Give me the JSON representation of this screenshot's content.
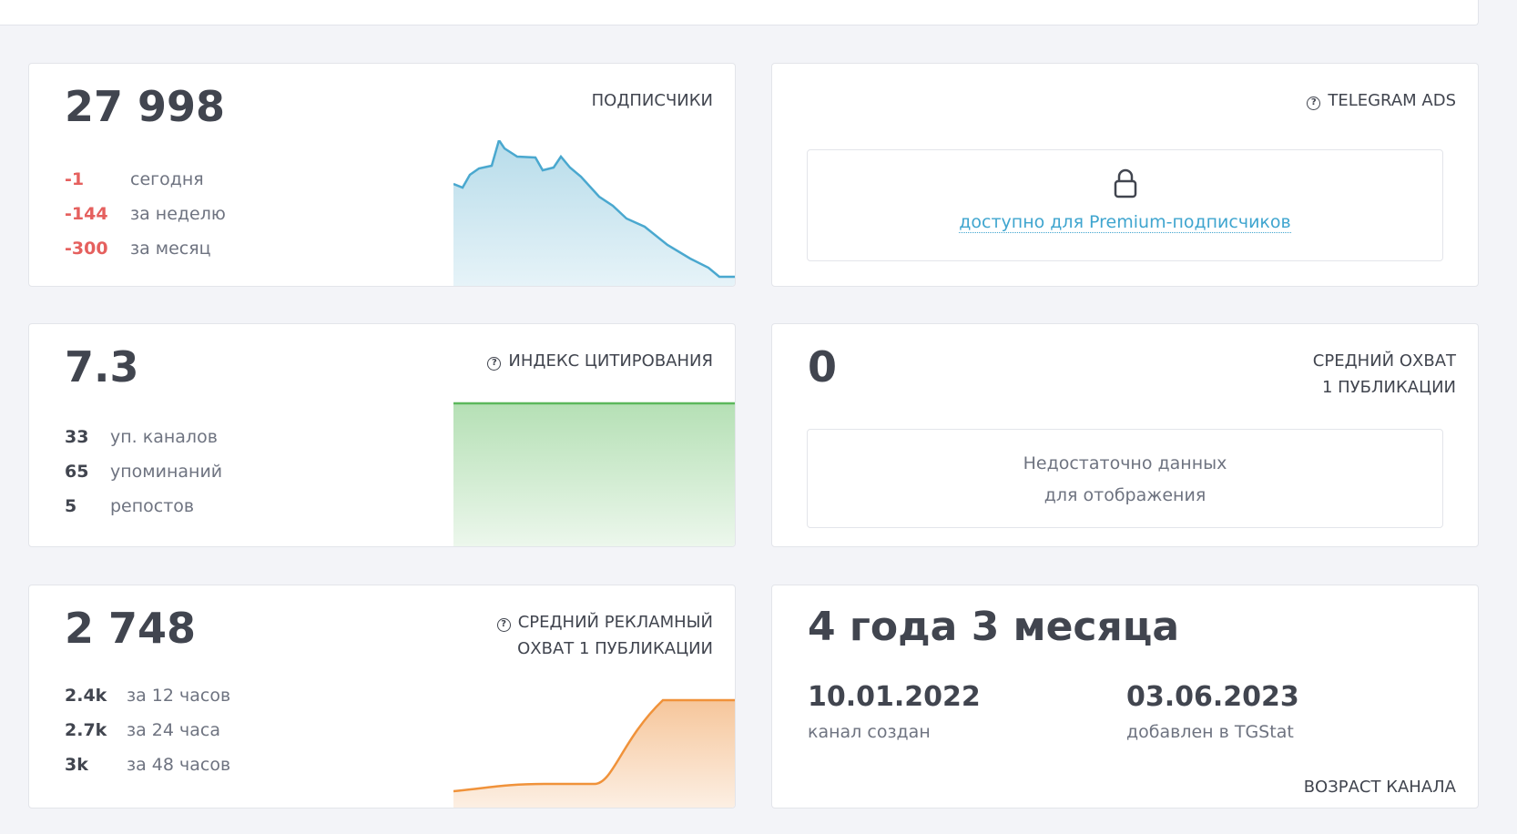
{
  "subscribers": {
    "value": "27 998",
    "title": "ПОДПИСЧИКИ",
    "stats": [
      {
        "value": "-1",
        "label": "сегодня"
      },
      {
        "value": "-144",
        "label": "за неделю"
      },
      {
        "value": "-300",
        "label": "за месяц"
      }
    ],
    "color": "#4aa8cf"
  },
  "ads": {
    "title": "TELEGRAM ADS",
    "icon": "help-circle-icon",
    "lock_icon": "lock-icon",
    "link": "доступно для Premium-подписчиков"
  },
  "citation": {
    "value": "7.3",
    "title": "ИНДЕКС ЦИТИРОВАНИЯ",
    "stats": [
      {
        "value": "33",
        "label": "уп. каналов"
      },
      {
        "value": "65",
        "label": "упоминаний"
      },
      {
        "value": "5",
        "label": "репостов"
      }
    ],
    "color": "#5cb85c"
  },
  "reach": {
    "value": "0",
    "title_1": "СРЕДНИЙ ОХВАТ",
    "title_2": "1 ПУБЛИКАЦИИ",
    "nodata_1": "Недостаточно данных",
    "nodata_2": "для отображения"
  },
  "ad_reach": {
    "value": "2 748",
    "title_1": "СРЕДНИЙ РЕКЛАМНЫЙ",
    "title_2": "ОХВАТ 1 ПУБЛИКАЦИИ",
    "stats": [
      {
        "value": "2.4k",
        "label": "за 12 часов"
      },
      {
        "value": "2.7k",
        "label": "за 24 часа"
      },
      {
        "value": "3k",
        "label": "за 48 часов"
      }
    ],
    "color": "#f0923a"
  },
  "age": {
    "value": "4 года 3 месяца",
    "created_date": "10.01.2022",
    "created_label": "канал создан",
    "added_date": "03.06.2023",
    "added_label": "добавлен в TGStat",
    "title": "ВОЗРАСТ КАНАЛА"
  }
}
